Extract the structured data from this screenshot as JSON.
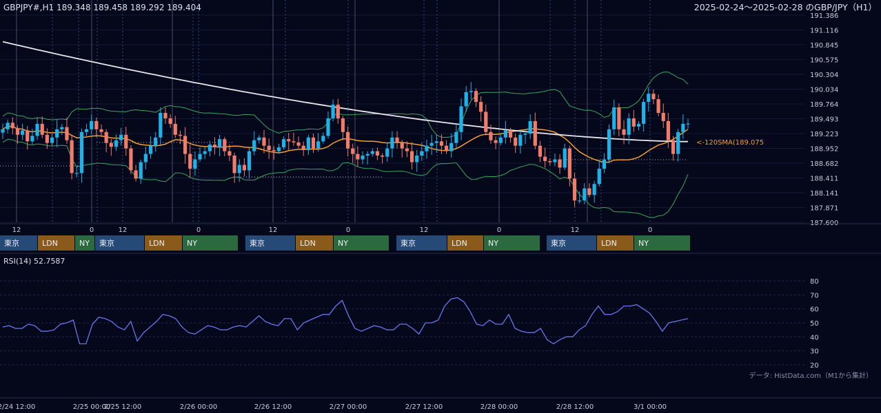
{
  "header": {
    "ohlc_text": "GBPJPY#,H1 189.348 189.458 189.292 189.404",
    "range_text": "2025-02-24～2025-02-28 のGBP/JPY（H1）"
  },
  "sma_label": "<-120SMA(189.075",
  "source_note": "データ: HistData.com（M1から集計）",
  "rsi_label": "RSI(14) 52.7587",
  "colors": {
    "background": "#05071a",
    "up": "#1fb2e8",
    "down": "#f07c6c",
    "sma_long": "#e8e8ec",
    "sma_short": "#f5a030",
    "bollinger": "#3aa860",
    "rsi": "#6a76f0",
    "tokyo": "#264a78",
    "london": "#8a5a1a",
    "newyork": "#2a6a3e"
  },
  "sessions": [
    {
      "labels": [
        "東京",
        "LDN",
        "NY"
      ]
    },
    {
      "labels": [
        "東京",
        "LDN",
        "NY"
      ]
    },
    {
      "labels": [
        "東京",
        "LDN",
        "NY"
      ]
    },
    {
      "labels": [
        "東京",
        "LDN",
        "NY"
      ]
    },
    {
      "labels": [
        "東京",
        "LDN",
        "NY"
      ]
    }
  ],
  "chart_data": {
    "type": "candlestick",
    "price_axis": {
      "ticks": [
        "191.386",
        "191.116",
        "190.845",
        "190.575",
        "190.304",
        "190.034",
        "189.764",
        "189.493",
        "189.223",
        "188.952",
        "188.682",
        "188.411",
        "188.141",
        "187.871",
        "187.600"
      ],
      "range": [
        187.6,
        191.386
      ]
    },
    "hour_ticks": [
      "12",
      "0",
      "12",
      "0",
      "12",
      "0",
      "12",
      "0",
      "12",
      "0"
    ],
    "date_ticks": [
      "2/24 12:00",
      "2/25 00:00",
      "2/25 12:00",
      "2/26 00:00",
      "2/26 12:00",
      "2/27 00:00",
      "2/27 12:00",
      "2/28 00:00",
      "2/28 12:00",
      "3/1 00:00"
    ],
    "rsi_axis": {
      "ticks": [
        "80",
        "70",
        "60",
        "50",
        "40",
        "30",
        "20"
      ],
      "range": [
        20,
        80
      ]
    },
    "close": [
      189.3,
      189.42,
      189.32,
      189.2,
      189.28,
      189.08,
      189.18,
      189.4,
      189.2,
      189.05,
      189.15,
      189.3,
      189.34,
      189.1,
      188.5,
      188.5,
      189.25,
      189.3,
      189.45,
      189.3,
      189.25,
      189.05,
      188.98,
      189.1,
      189.2,
      188.95,
      188.55,
      188.4,
      188.7,
      188.85,
      189.0,
      189.15,
      189.6,
      189.5,
      189.4,
      189.2,
      189.18,
      188.85,
      188.58,
      188.75,
      188.85,
      188.9,
      189.02,
      188.98,
      189.12,
      188.9,
      188.82,
      188.5,
      188.65,
      188.55,
      188.9,
      189.1,
      189.15,
      189.0,
      188.92,
      188.9,
      188.97,
      189.12,
      189.08,
      189.06,
      189.0,
      188.92,
      189.15,
      188.95,
      189.08,
      189.18,
      189.5,
      189.75,
      189.5,
      189.25,
      188.95,
      188.85,
      188.75,
      188.82,
      188.85,
      188.9,
      188.82,
      188.8,
      188.95,
      189.15,
      189.05,
      188.95,
      188.9,
      188.7,
      188.82,
      188.9,
      189.0,
      189.05,
      189.08,
      189.0,
      188.9,
      189.05,
      189.25,
      189.72,
      189.98,
      190.0,
      189.8,
      189.62,
      189.25,
      189.1,
      189.05,
      189.15,
      189.28,
      189.15,
      189.0,
      189.2,
      189.22,
      189.45,
      189.0,
      188.8,
      188.72,
      188.7,
      188.75,
      188.6,
      188.95,
      188.4,
      188.0,
      188.0,
      188.22,
      188.1,
      188.3,
      188.58,
      188.75,
      189.3,
      189.7,
      189.3,
      189.2,
      189.5,
      189.35,
      189.4,
      189.8,
      189.95,
      189.85,
      189.6,
      189.45,
      189.1,
      188.85,
      189.25,
      189.4,
      189.404
    ],
    "rsi_values": [
      47,
      48,
      46,
      46,
      49,
      48,
      44,
      44,
      45,
      49,
      50,
      52,
      35,
      35,
      49,
      54,
      53,
      51,
      47,
      45,
      51,
      37,
      43,
      47,
      51,
      56,
      55,
      53,
      47,
      43,
      42,
      45,
      48,
      47,
      45,
      45,
      47,
      48,
      47,
      51,
      55,
      51,
      49,
      48,
      53,
      53,
      45,
      50,
      52,
      54,
      56,
      56,
      62,
      66,
      55,
      46,
      44,
      46,
      48,
      47,
      45,
      45,
      49,
      49,
      46,
      42,
      50,
      50,
      52,
      62,
      67,
      68,
      65,
      58,
      49,
      48,
      52,
      49,
      49,
      56,
      46,
      44,
      43,
      43,
      46,
      38,
      35,
      38,
      40,
      40,
      45,
      48,
      56,
      62,
      56,
      56,
      58,
      62,
      62,
      63,
      60,
      57,
      51,
      44,
      50,
      51,
      52,
      53
    ]
  }
}
